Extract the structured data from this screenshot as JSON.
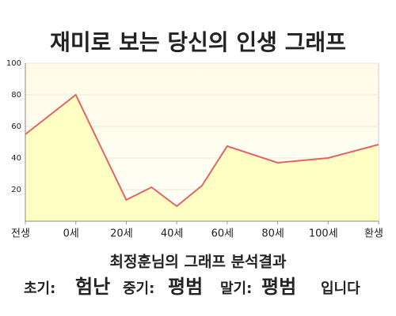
{
  "chart_data": {
    "type": "line",
    "title": "재미로 보는 당신의 인생 그래프",
    "x": [
      -20,
      0,
      20,
      30,
      40,
      50,
      60,
      80,
      100,
      120
    ],
    "values": [
      55,
      80,
      13.5,
      21.5,
      9.5,
      22.5,
      47.5,
      37,
      40,
      48.5
    ],
    "color": "#e06666",
    "fill": "#ffffc4",
    "xlim": [
      -20,
      120
    ],
    "xticks": [
      {
        "value": -20,
        "label": "전생"
      },
      {
        "value": 0,
        "label": "0세"
      },
      {
        "value": 20,
        "label": "20세"
      },
      {
        "value": 40,
        "label": "40세"
      },
      {
        "value": 60,
        "label": "60세"
      },
      {
        "value": 80,
        "label": "80세"
      },
      {
        "value": 100,
        "label": "100세"
      },
      {
        "value": 120,
        "label": "환생"
      }
    ],
    "ylim": [
      0,
      100
    ],
    "yticks": [
      20,
      40,
      60,
      80,
      100
    ],
    "grid": true
  },
  "analysis": {
    "title": "최정훈님의 그래프 분석결과",
    "items": [
      {
        "label": "초기:",
        "value": "험난"
      },
      {
        "label": "중기:",
        "value": "평범"
      },
      {
        "label": "말기:",
        "value": "평범"
      }
    ],
    "suffix": "입니다"
  }
}
